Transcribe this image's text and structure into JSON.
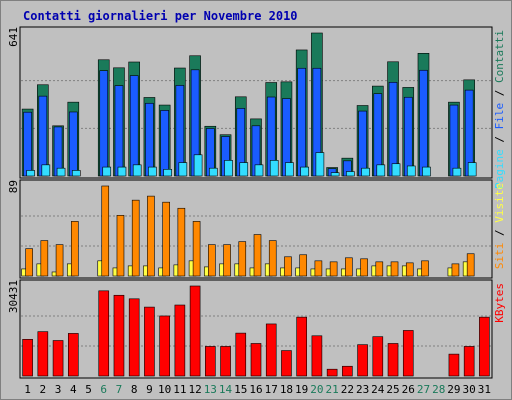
{
  "title": "Contatti giornalieri per Novembre 2010",
  "colors": {
    "background": "#c0c0c0",
    "title": "#0000b0",
    "page": "#1a5cff",
    "file": "#1a7a5a",
    "hits": "#33ddff",
    "sites": "#ff8800",
    "visits": "#ffff44",
    "kbytes": "#ff0000",
    "weekend_day_label": "#1a7a5a",
    "weekday_day_label": "#000000"
  },
  "chart_data": [
    {
      "type": "bar",
      "name": "panel-top",
      "y_max_label": "641",
      "ylim": [
        0,
        641
      ],
      "legend_right": [
        {
          "text": "Pagine",
          "color": "#33ddff"
        },
        {
          "text": " / ",
          "color": "#000000"
        },
        {
          "text": "File",
          "color": "#1a5cff"
        },
        {
          "text": " / ",
          "color": "#000000"
        },
        {
          "text": "Contatti",
          "color": "#1a7a5a"
        }
      ],
      "categories": [
        "1",
        "2",
        "3",
        "4",
        "5",
        "6",
        "7",
        "8",
        "9",
        "10",
        "11",
        "12",
        "13",
        "14",
        "15",
        "16",
        "17",
        "18",
        "19",
        "20",
        "21",
        "22",
        "23",
        "24",
        "25",
        "26",
        "27",
        "28",
        "29",
        "30",
        "31"
      ],
      "series": [
        {
          "name": "Contatti",
          "color": "#1a7a5a",
          "values": [
            300,
            409,
            225,
            331,
            0,
            521,
            485,
            511,
            352,
            318,
            484,
            539,
            223,
            185,
            355,
            256,
            419,
            422,
            565,
            641,
            38,
            80,
            316,
            403,
            512,
            397,
            550,
            0,
            331,
            431,
            0
          ]
        },
        {
          "name": "File",
          "color": "#1a5cff",
          "values": [
            286,
            358,
            220,
            287,
            0,
            472,
            405,
            450,
            326,
            294,
            406,
            476,
            213,
            177,
            303,
            225,
            354,
            347,
            483,
            483,
            33,
            68,
            291,
            369,
            420,
            353,
            474,
            0,
            318,
            385,
            0
          ]
        },
        {
          "name": "Pagine",
          "color": "#33ddff",
          "values": [
            25,
            50,
            35,
            25,
            0,
            40,
            40,
            50,
            40,
            30,
            60,
            95,
            35,
            70,
            60,
            50,
            70,
            60,
            40,
            105,
            15,
            20,
            35,
            50,
            55,
            45,
            40,
            0,
            35,
            60,
            0
          ]
        }
      ]
    },
    {
      "type": "bar",
      "name": "panel-mid",
      "y_max_label": "89",
      "ylim": [
        0,
        89
      ],
      "legend_right": [
        {
          "text": "Siti",
          "color": "#ff8800"
        },
        {
          "text": " / ",
          "color": "#000000"
        },
        {
          "text": "Visite",
          "color": "#ffff44"
        }
      ],
      "categories": [
        "1",
        "2",
        "3",
        "4",
        "5",
        "6",
        "7",
        "8",
        "9",
        "10",
        "11",
        "12",
        "13",
        "14",
        "15",
        "16",
        "17",
        "18",
        "19",
        "20",
        "21",
        "22",
        "23",
        "24",
        "25",
        "26",
        "27",
        "28",
        "29",
        "30",
        "31"
      ],
      "series": [
        {
          "name": "Siti",
          "color": "#ff8800",
          "values": [
            27,
            35,
            31,
            54,
            0,
            89,
            60,
            75,
            79,
            73,
            67,
            54,
            31,
            31,
            34,
            41,
            35,
            19,
            21,
            15,
            14,
            18,
            17,
            14,
            14,
            13,
            15,
            0,
            12,
            22,
            0
          ]
        },
        {
          "name": "Visite",
          "color": "#ffff44",
          "values": [
            7,
            12,
            4,
            12,
            0,
            15,
            8,
            10,
            10,
            8,
            11,
            15,
            9,
            12,
            12,
            8,
            12,
            8,
            8,
            7,
            7,
            7,
            7,
            10,
            10,
            10,
            7,
            0,
            8,
            14,
            0
          ]
        }
      ]
    },
    {
      "type": "bar",
      "name": "panel-bottom",
      "y_max_label": "30431",
      "ylim": [
        0,
        30431
      ],
      "legend_right": [
        {
          "text": "KBytes",
          "color": "#ff0000"
        }
      ],
      "categories": [
        "1",
        "2",
        "3",
        "4",
        "5",
        "6",
        "7",
        "8",
        "9",
        "10",
        "11",
        "12",
        "13",
        "14",
        "15",
        "16",
        "17",
        "18",
        "19",
        "20",
        "21",
        "22",
        "23",
        "24",
        "25",
        "26",
        "27",
        "28",
        "29",
        "30",
        "31"
      ],
      "series": [
        {
          "name": "KBytes",
          "color": "#ff0000",
          "values": [
            12400,
            15000,
            12000,
            14400,
            0,
            28800,
            27300,
            26100,
            23300,
            20300,
            24000,
            30431,
            10000,
            10000,
            14500,
            11000,
            17600,
            8600,
            19900,
            13600,
            2300,
            3300,
            10600,
            13300,
            11000,
            15400,
            0,
            0,
            7400,
            10000,
            19900
          ]
        }
      ]
    }
  ],
  "weekend_days": [
    "6",
    "7",
    "13",
    "14",
    "20",
    "21",
    "27",
    "28"
  ]
}
